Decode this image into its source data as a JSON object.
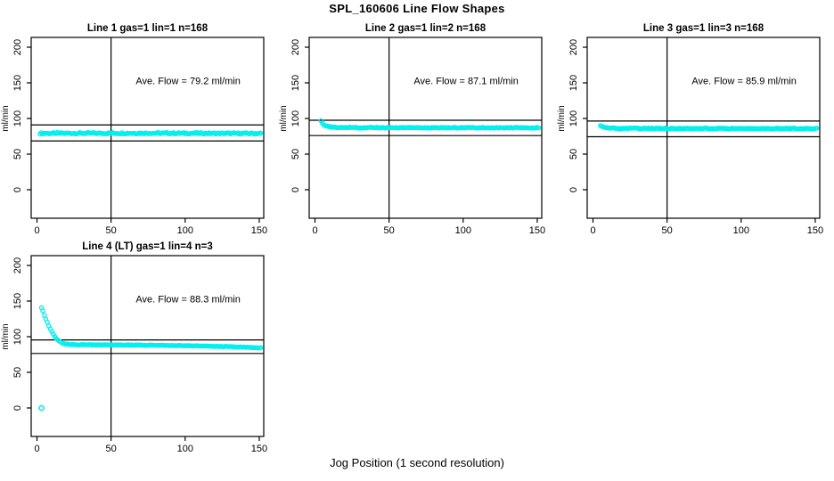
{
  "chart_data": {
    "type": "scatter",
    "suptitle": "SPL_160606  Line Flow Shapes",
    "xlabel": "Jog Position (1 second resolution)",
    "ylabel": "ml/min",
    "x_ticks": [
      0,
      50,
      100,
      150
    ],
    "y_ticks": [
      0,
      50,
      100,
      150,
      200
    ],
    "xlim": [
      -4,
      153
    ],
    "ylim": [
      -40,
      214
    ],
    "grid": false,
    "marker_color": "#00EFEF",
    "axis_color": "#000000",
    "vline_x": 50,
    "panels": [
      {
        "title": "Line 1 gas=1 lin=1 n=168",
        "annotation": "Ave. Flow =  79.2  ml/min",
        "avg_flow_ml_min": 79.2,
        "n": 168,
        "hlines": [
          90.9,
          68.4
        ],
        "n_points": 168,
        "jitter": 1.0,
        "profile": [
          [
            2,
            79.2
          ],
          [
            75,
            79.4
          ],
          [
            151,
            79.0
          ]
        ],
        "outliers": []
      },
      {
        "title": "Line 2 gas=1 lin=2 n=168",
        "annotation": "Ave. Flow =  87.1  ml/min",
        "avg_flow_ml_min": 87.1,
        "n": 168,
        "hlines": [
          97.5,
          76.0
        ],
        "n_points": 168,
        "jitter": 0.55,
        "profile": [
          [
            4,
            97.0
          ],
          [
            5,
            93.5
          ],
          [
            6,
            91.0
          ],
          [
            8,
            89.0
          ],
          [
            11,
            88.0
          ],
          [
            15,
            87.4
          ],
          [
            25,
            87.1
          ],
          [
            151,
            87.0
          ]
        ],
        "outliers": []
      },
      {
        "title": "Line 3 gas=1 lin=3 n=168",
        "annotation": "Ave. Flow =  85.9  ml/min",
        "avg_flow_ml_min": 85.9,
        "n": 168,
        "hlines": [
          96.4,
          74.4
        ],
        "n_points": 168,
        "jitter": 0.55,
        "profile": [
          [
            5,
            90.0
          ],
          [
            6,
            88.5
          ],
          [
            8,
            87.3
          ],
          [
            12,
            86.5
          ],
          [
            20,
            86.1
          ],
          [
            151,
            85.8
          ]
        ],
        "outliers": []
      },
      {
        "title": "Line 4 (LT) gas=1 lin=4 n=3",
        "annotation": "Ave. Flow =  88.3  ml/min",
        "avg_flow_ml_min": 88.3,
        "n": 3,
        "hlines": [
          95.5,
          76.5
        ],
        "n_points": 150,
        "jitter": 0.35,
        "profile": [
          [
            3,
            141
          ],
          [
            4,
            136
          ],
          [
            5,
            130
          ],
          [
            6,
            125
          ],
          [
            7,
            120
          ],
          [
            8,
            115
          ],
          [
            9,
            111
          ],
          [
            10,
            107
          ],
          [
            11,
            103
          ],
          [
            12,
            100
          ],
          [
            13,
            97.5
          ],
          [
            14,
            95.5
          ],
          [
            15,
            94
          ],
          [
            16,
            92.5
          ],
          [
            17,
            91.5
          ],
          [
            18,
            90.5
          ],
          [
            20,
            89.5
          ],
          [
            23,
            89
          ],
          [
            28,
            88.7
          ],
          [
            40,
            88.6
          ],
          [
            60,
            88.4
          ],
          [
            80,
            88.0
          ],
          [
            100,
            87.4
          ],
          [
            115,
            86.8
          ],
          [
            130,
            86.0
          ],
          [
            140,
            85.2
          ],
          [
            151,
            84.3
          ]
        ],
        "outliers": [
          [
            3,
            0
          ]
        ]
      }
    ]
  }
}
